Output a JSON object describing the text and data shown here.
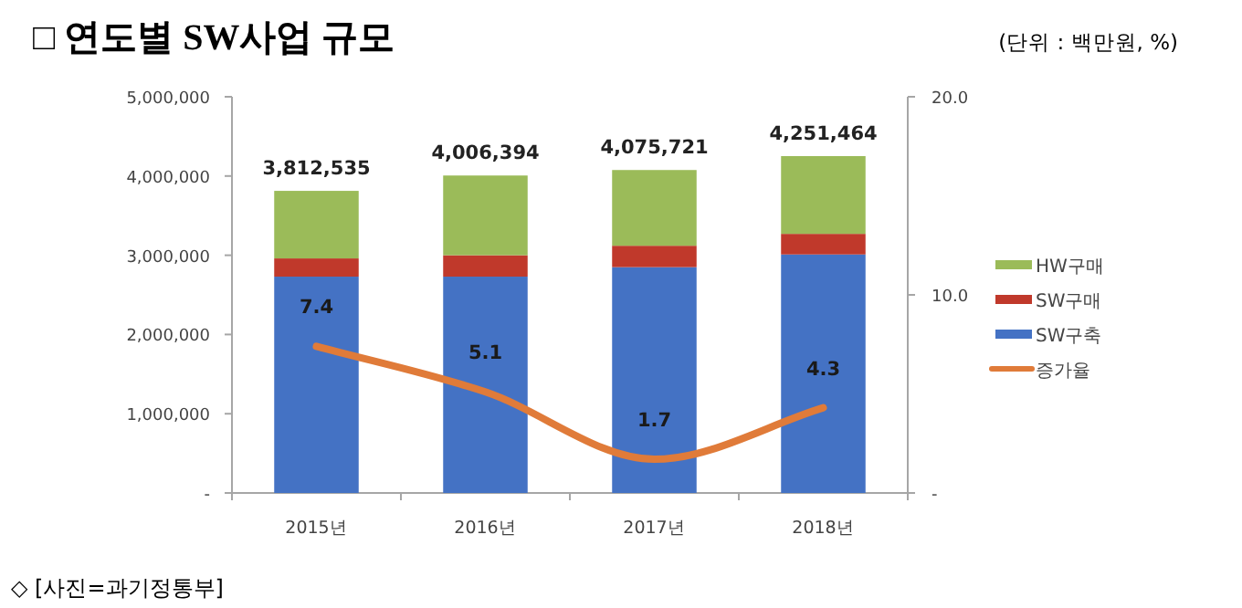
{
  "chart_data": {
    "type": "bar",
    "title": "□ 연도별 SW사업 규모",
    "subtitle": "(단위 : 백만원, %)",
    "annotations": [
      "◇ [사진=과기정통부]"
    ],
    "categories": [
      "2015년",
      "2016년",
      "2017년",
      "2018년"
    ],
    "stacked": true,
    "series": [
      {
        "name": "SW구축",
        "color": "#4472c4",
        "values": [
          2730000,
          2730000,
          2850000,
          3010000
        ]
      },
      {
        "name": "SW구매",
        "color": "#c0392b",
        "values": [
          230000,
          270000,
          270000,
          260000
        ]
      },
      {
        "name": "HW구매",
        "color": "#9bbb59",
        "values": [
          852535,
          1006394,
          955721,
          981464
        ]
      },
      {
        "name": "증가율",
        "type": "line",
        "axis": "y2",
        "color": "#e07b39",
        "values": [
          7.4,
          5.1,
          1.7,
          4.3
        ],
        "value_labels": [
          "7.4",
          "5.1",
          "1.7",
          "4.3"
        ]
      }
    ],
    "totals": [
      "3,812,535",
      "4,006,394",
      "4,075,721",
      "4,251,464"
    ],
    "ylim": [
      0,
      5000000
    ],
    "yticks": [
      {
        "value": 0,
        "label": "-"
      },
      {
        "value": 1000000,
        "label": "1,000,000"
      },
      {
        "value": 2000000,
        "label": "2,000,000"
      },
      {
        "value": 3000000,
        "label": "3,000,000"
      },
      {
        "value": 4000000,
        "label": "4,000,000"
      },
      {
        "value": 5000000,
        "label": "5,000,000"
      }
    ],
    "y2lim": [
      0,
      20
    ],
    "y2ticks": [
      {
        "value": 0,
        "label": "-"
      },
      {
        "value": 10,
        "label": "10.0"
      },
      {
        "value": 20,
        "label": "20.0"
      }
    ],
    "legend": "right"
  }
}
